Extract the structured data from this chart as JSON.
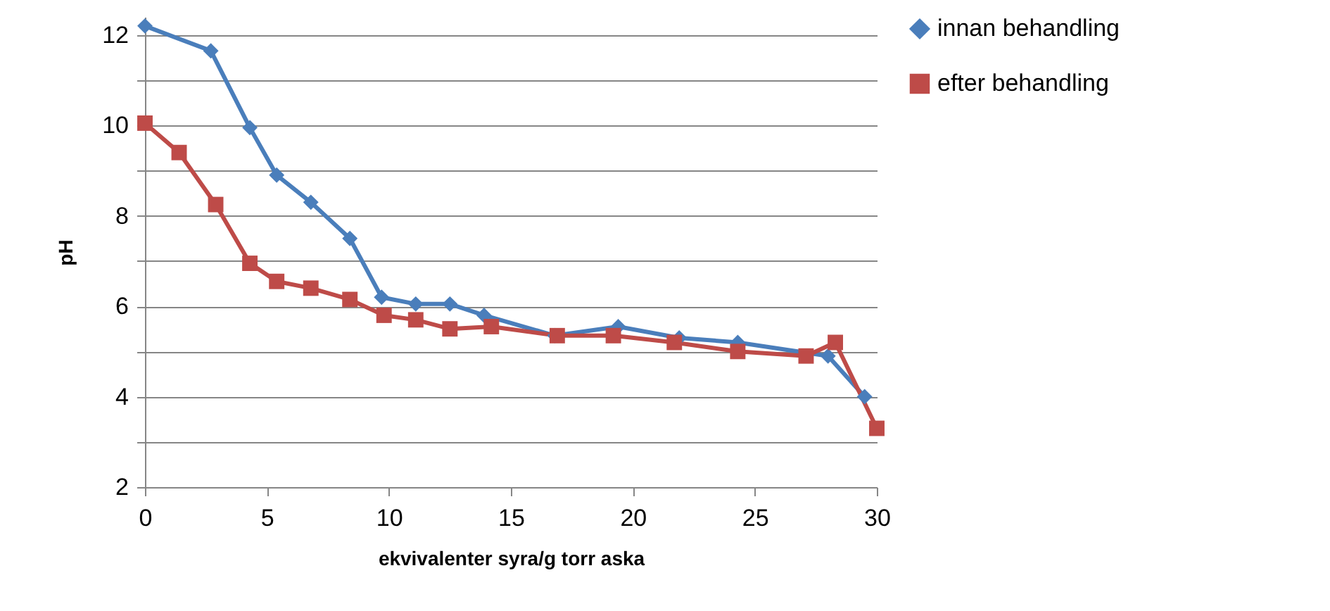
{
  "chart_data": {
    "type": "line",
    "xlabel": "ekvivalenter syra/g torr aska",
    "ylabel": "pH",
    "xlim": [
      0,
      30
    ],
    "xticks": [
      0,
      5,
      10,
      15,
      20,
      25,
      30
    ],
    "ylim": [
      2,
      12.4
    ],
    "yticks": [
      2,
      {
        "value": 3,
        "label": null
      },
      4,
      {
        "value": 5,
        "label": null
      },
      6,
      {
        "value": 7,
        "label": null
      },
      8,
      {
        "value": 9,
        "label": null
      },
      10,
      {
        "value": 11,
        "label": null
      },
      12
    ],
    "grid": "y",
    "legend": "right",
    "line_style": "solid",
    "series": [
      {
        "name": "innan behandling",
        "color": "#4a7ebb",
        "marker": "diamond",
        "x": [
          0,
          2.7,
          4.3,
          5.4,
          6.8,
          8.4,
          9.7,
          11.1,
          12.5,
          13.9,
          16.8,
          19.4,
          21.9,
          24.3,
          28.0,
          29.5
        ],
        "values": [
          12.2,
          11.65,
          9.95,
          8.9,
          8.3,
          7.5,
          6.2,
          6.05,
          6.05,
          5.8,
          5.35,
          5.55,
          5.3,
          5.2,
          4.9,
          4.0
        ]
      },
      {
        "name": "efter behandling",
        "color": "#be4b48",
        "marker": "square",
        "x": [
          0,
          1.4,
          2.9,
          4.3,
          5.4,
          6.8,
          8.4,
          9.8,
          11.1,
          12.5,
          14.2,
          16.9,
          19.2,
          21.7,
          24.3,
          27.1,
          28.3,
          30
        ],
        "values": [
          10.05,
          9.4,
          8.25,
          6.95,
          6.55,
          6.4,
          6.15,
          5.8,
          5.7,
          5.5,
          5.55,
          5.35,
          5.35,
          5.2,
          5.0,
          4.9,
          5.2,
          3.3
        ]
      }
    ]
  }
}
